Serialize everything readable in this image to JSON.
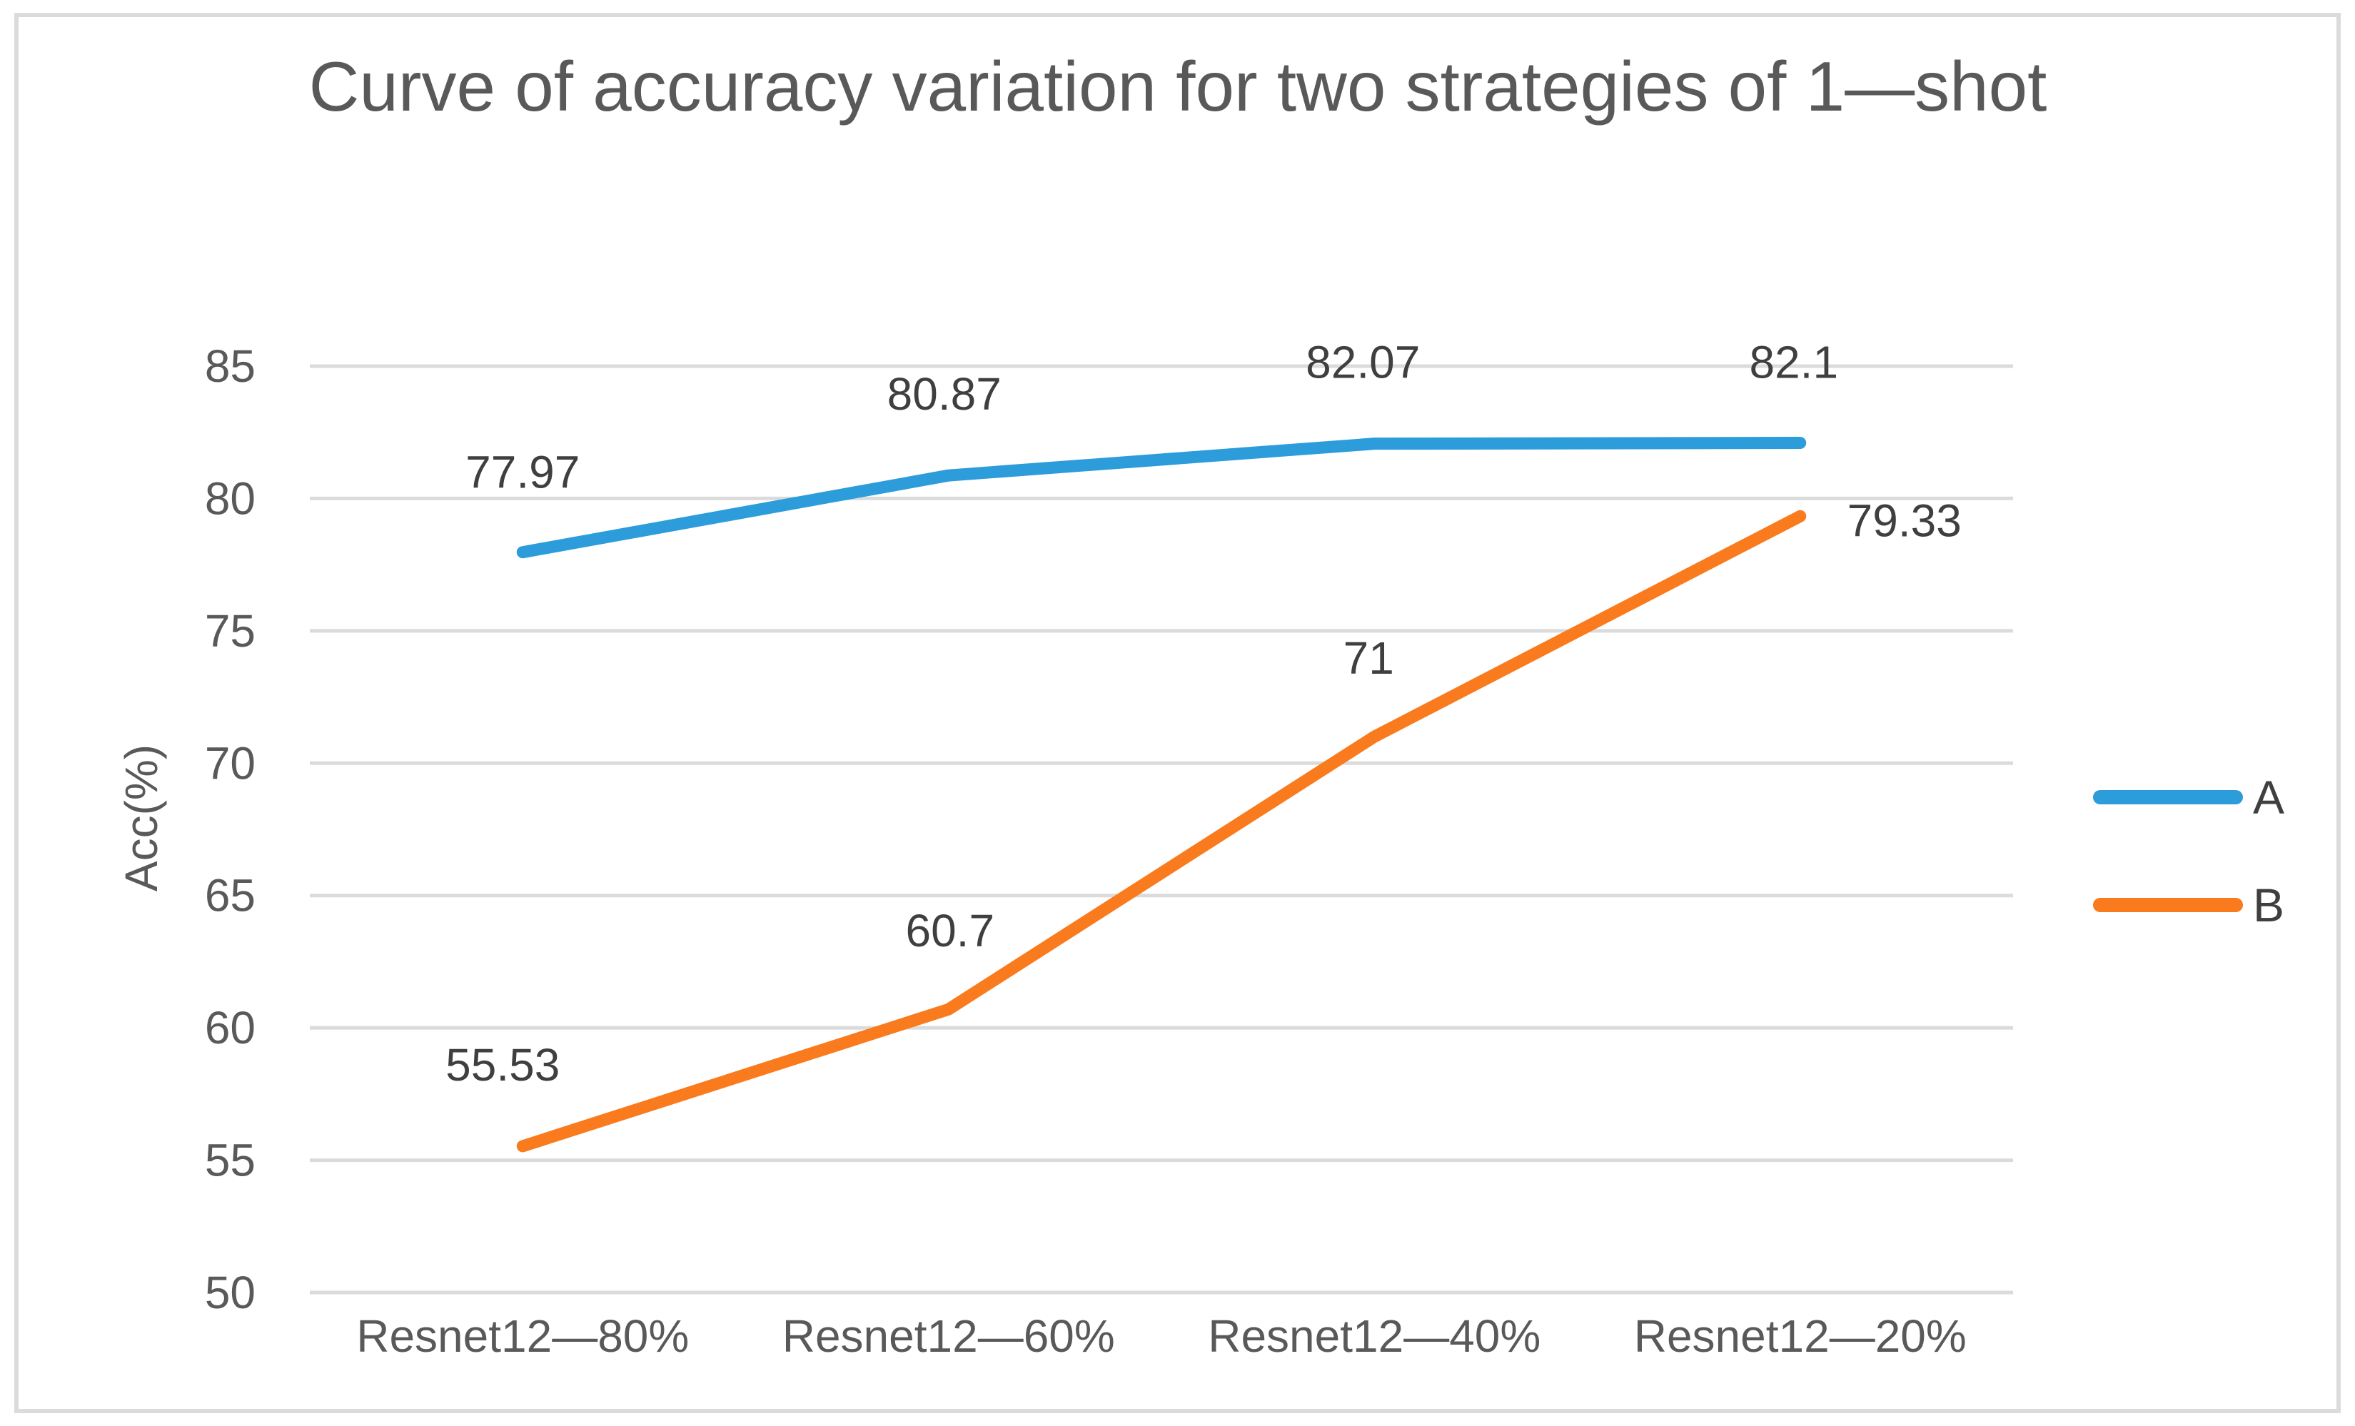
{
  "chart_data": {
    "type": "line",
    "title": "Curve of accuracy variation for two strategies of 1—shot",
    "xlabel": "",
    "ylabel": "Acc(%)",
    "categories": [
      "Resnet12—80%",
      "Resnet12—60%",
      "Resnet12—40%",
      "Resnet12—20%"
    ],
    "series": [
      {
        "name": "A",
        "color": "#2C9CDB",
        "values": [
          77.97,
          80.87,
          82.07,
          82.1
        ],
        "labels": [
          "77.97",
          "80.87",
          "82.07",
          "82.1"
        ]
      },
      {
        "name": "B",
        "color": "#F97B1D",
        "values": [
          55.53,
          60.7,
          71,
          79.33
        ],
        "labels": [
          "55.53",
          "60.7",
          "71",
          "79.33"
        ]
      }
    ],
    "yticks": [
      85,
      80,
      75,
      70,
      65,
      60,
      55,
      50
    ],
    "ylim": [
      50,
      85
    ],
    "grid": "horizontal",
    "legend_position": "right",
    "colors": {
      "grid_line": "#DBDBDB",
      "axis_text": "#595959",
      "data_label_text": "#3F3F3F",
      "frame_border": "#DBDBDB",
      "background": "#FFFFFF"
    }
  }
}
